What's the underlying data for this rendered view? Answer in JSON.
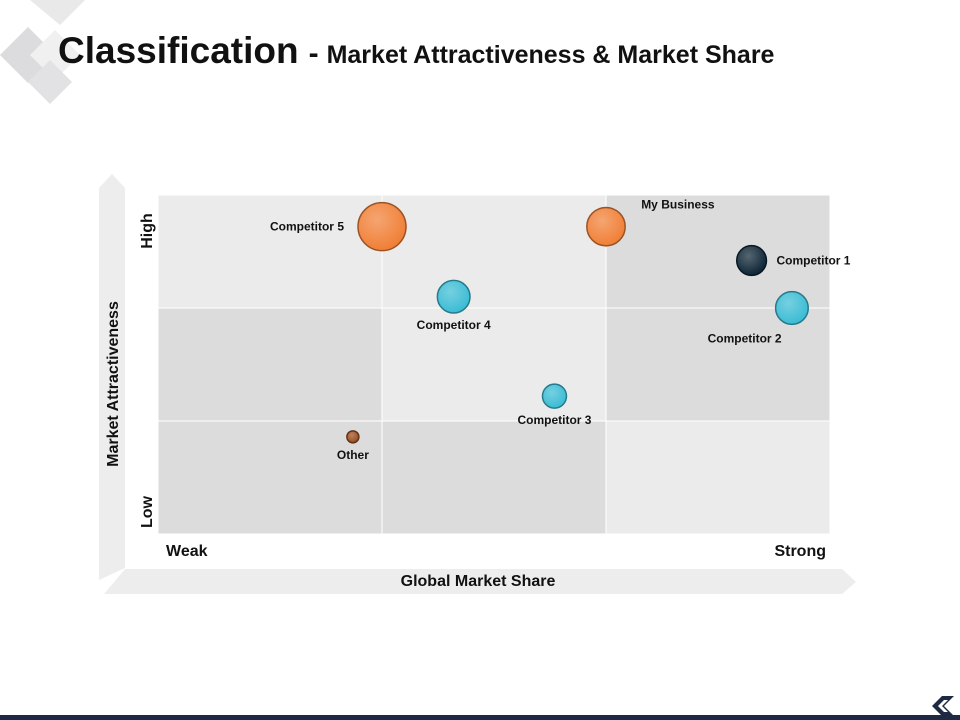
{
  "page": {
    "title": "Classification",
    "separator": "-",
    "subtitle": "Market Attractiveness & Market Share"
  },
  "colors": {
    "orange": "#f07f36",
    "teal": "#3bbcd4",
    "navy": "#0d2535",
    "brown": "#9a4e20",
    "quad_light": "#ebebec",
    "quad_mid": "#dcdcdd",
    "footer": "#1e2a44"
  },
  "chart_data": {
    "type": "scatter",
    "title": "",
    "xlabel": "Global Market Share",
    "ylabel": "Market Attractiveness",
    "x_end_labels": [
      "Weak",
      "Strong"
    ],
    "y_end_labels": [
      "Low",
      "High"
    ],
    "xlim": [
      0,
      3
    ],
    "ylim": [
      0,
      3
    ],
    "grid": "3x3",
    "quadrant_shading": [
      [
        "light",
        "light",
        "mid"
      ],
      [
        "mid",
        "light",
        "mid"
      ],
      [
        "mid",
        "mid",
        "light"
      ]
    ],
    "points": [
      {
        "label": "Competitor 5",
        "x": 1.0,
        "y": 2.72,
        "size": 1.0,
        "color": "orange",
        "label_pos": "left"
      },
      {
        "label": "My Business",
        "x": 2.0,
        "y": 2.72,
        "size": 0.8,
        "color": "orange",
        "label_pos": "top-right"
      },
      {
        "label": "Competitor 1",
        "x": 2.65,
        "y": 2.42,
        "size": 0.62,
        "color": "navy",
        "label_pos": "right"
      },
      {
        "label": "Competitor 2",
        "x": 2.83,
        "y": 2.0,
        "size": 0.68,
        "color": "teal",
        "label_pos": "bottom-left"
      },
      {
        "label": "Competitor 4",
        "x": 1.32,
        "y": 2.1,
        "size": 0.68,
        "color": "teal",
        "label_pos": "bottom"
      },
      {
        "label": "Competitor 3",
        "x": 1.77,
        "y": 1.22,
        "size": 0.5,
        "color": "teal",
        "label_pos": "bottom"
      },
      {
        "label": "Other",
        "x": 0.87,
        "y": 0.86,
        "size": 0.25,
        "color": "brown",
        "label_pos": "bottom"
      }
    ]
  }
}
